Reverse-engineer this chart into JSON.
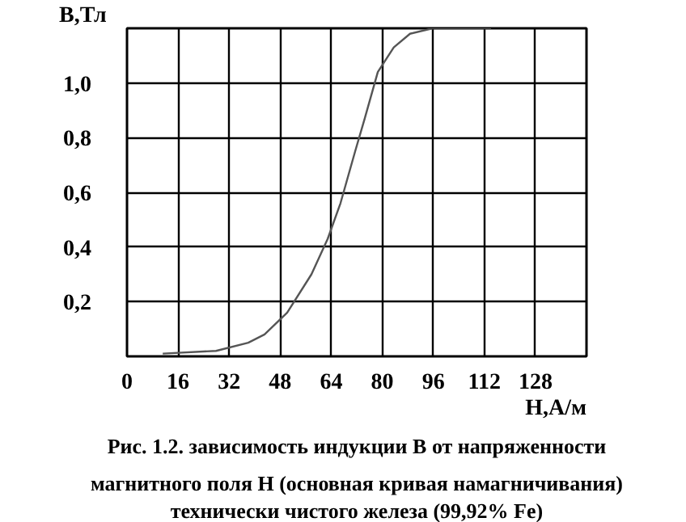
{
  "chart_data": {
    "type": "line",
    "xlabel": "Н,А/м",
    "ylabel": "В,Тл",
    "x": [
      11.2,
      27.9,
      38.0,
      43.1,
      50.2,
      57.8,
      62.9,
      66.9,
      71.5,
      74.5,
      78.6,
      83.6,
      88.7,
      95.8,
      114.1
    ],
    "series": [
      {
        "color": "#555555",
        "values": [
          0.01,
          0.02,
          0.05,
          0.08,
          0.16,
          0.3,
          0.43,
          0.56,
          0.75,
          0.87,
          1.04,
          1.13,
          1.18,
          1.2,
          1.2
        ]
      }
    ],
    "xlim": [
      0,
      144
    ],
    "ylim": [
      0,
      1.2
    ],
    "xticks": [
      0,
      16,
      32,
      48,
      64,
      80,
      96,
      112,
      128,
      {
        "value": 144,
        "label": null
      }
    ],
    "yticks": [
      {
        "value": 0,
        "label": null
      },
      {
        "value": 0.2,
        "label": "0,2"
      },
      {
        "value": 0.4,
        "label": "0,4"
      },
      {
        "value": 0.6,
        "label": "0,6"
      },
      {
        "value": 0.8,
        "label": "0,8"
      },
      {
        "value": 1.0,
        "label": "1,0"
      },
      {
        "value": 1.2,
        "label": null
      }
    ],
    "grid": true,
    "marker": "none",
    "line_style": "solid",
    "annotations": [
      "Рис. 1.2. зависимость индукции В от напряженности\nмагнитного поля Н (основная кривая намагничивания)\nтехнически чистого железа (99,92% Fe)"
    ]
  }
}
